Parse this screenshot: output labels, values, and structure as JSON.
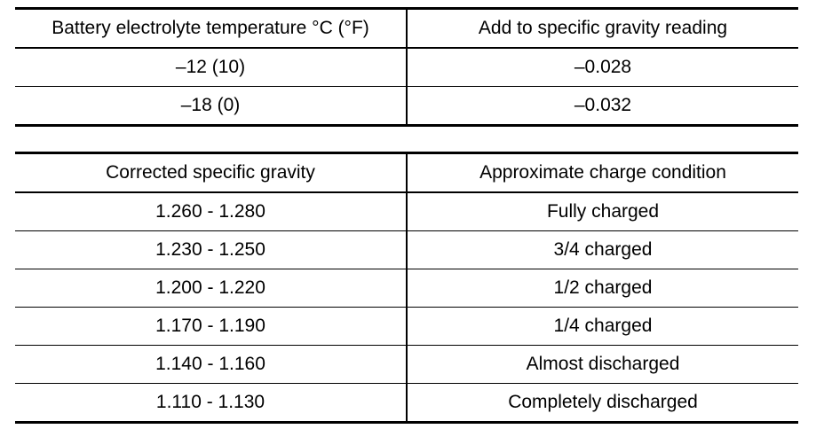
{
  "temperature_table": {
    "headers": [
      "Battery electrolyte temperature °C (°F)",
      "Add to specific gravity reading"
    ],
    "rows": [
      [
        "–12 (10)",
        "–0.028"
      ],
      [
        "–18 (0)",
        "–0.032"
      ]
    ]
  },
  "charge_table": {
    "headers": [
      "Corrected specific gravity",
      "Approximate charge condition"
    ],
    "rows": [
      [
        "1.260 - 1.280",
        "Fully charged"
      ],
      [
        "1.230 - 1.250",
        "3/4 charged"
      ],
      [
        "1.200 - 1.220",
        "1/2 charged"
      ],
      [
        "1.170 - 1.190",
        "1/4 charged"
      ],
      [
        "1.140 - 1.160",
        "Almost discharged"
      ],
      [
        "1.110 - 1.130",
        "Completely discharged"
      ]
    ]
  }
}
